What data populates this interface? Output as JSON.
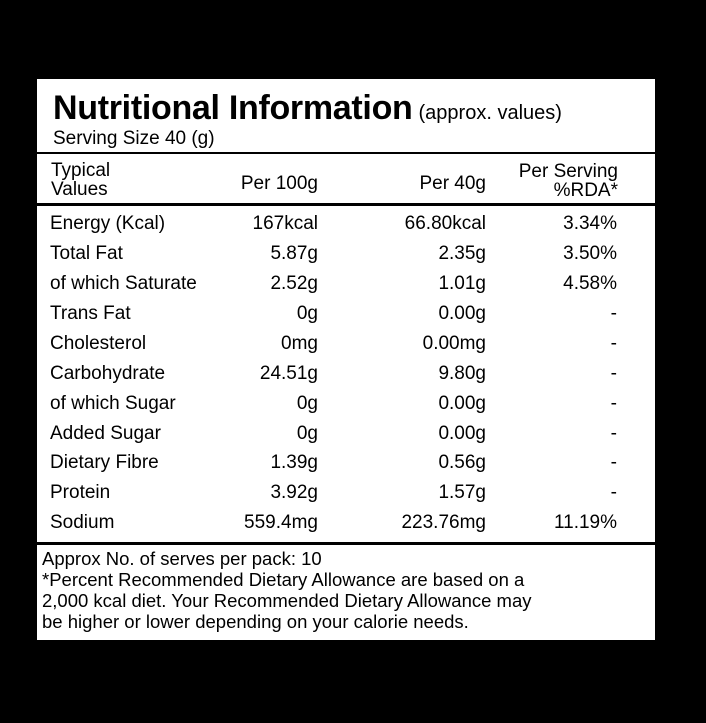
{
  "label": {
    "title": "Nutritional Information",
    "title_note": "(approx. values)",
    "serving_size": "Serving Size 40 (g)",
    "headers": {
      "typical_line1": "Typical",
      "typical_line2": "Values",
      "per_100g": "Per 100g",
      "per_40g": "Per 40g",
      "rda_line1": "Per Serving",
      "rda_line2": "%RDA*"
    },
    "rows": [
      {
        "name": "Energy (Kcal)",
        "per100": "167kcal",
        "per40": "66.80kcal",
        "rda": "3.34%"
      },
      {
        "name": "Total Fat",
        "per100": "5.87g",
        "per40": "2.35g",
        "rda": "3.50%"
      },
      {
        "name": "of which Saturate",
        "per100": "2.52g",
        "per40": "1.01g",
        "rda": "4.58%"
      },
      {
        "name": "Trans Fat",
        "per100": "0g",
        "per40": "0.00g",
        "rda": "-"
      },
      {
        "name": "Cholesterol",
        "per100": "0mg",
        "per40": "0.00mg",
        "rda": "-"
      },
      {
        "name": "Carbohydrate",
        "per100": "24.51g",
        "per40": "9.80g",
        "rda": "-"
      },
      {
        "name": "of which Sugar",
        "per100": "0g",
        "per40": "0.00g",
        "rda": "-"
      },
      {
        "name": "Added Sugar",
        "per100": "0g",
        "per40": "0.00g",
        "rda": "-"
      },
      {
        "name": "Dietary Fibre",
        "per100": "1.39g",
        "per40": "0.56g",
        "rda": "-"
      },
      {
        "name": "Protein",
        "per100": "3.92g",
        "per40": "1.57g",
        "rda": "-"
      },
      {
        "name": "Sodium",
        "per100": "559.4mg",
        "per40": "223.76mg",
        "rda": "11.19%"
      }
    ],
    "footer": {
      "serves": "Approx No. of serves per pack: 10",
      "note_line1": "*Percent Recommended Dietary Allowance are based on a",
      "note_line2": "2,000 kcal diet. Your Recommended Dietary Allowance may",
      "note_line3": "be higher or lower depending on your calorie needs."
    }
  }
}
